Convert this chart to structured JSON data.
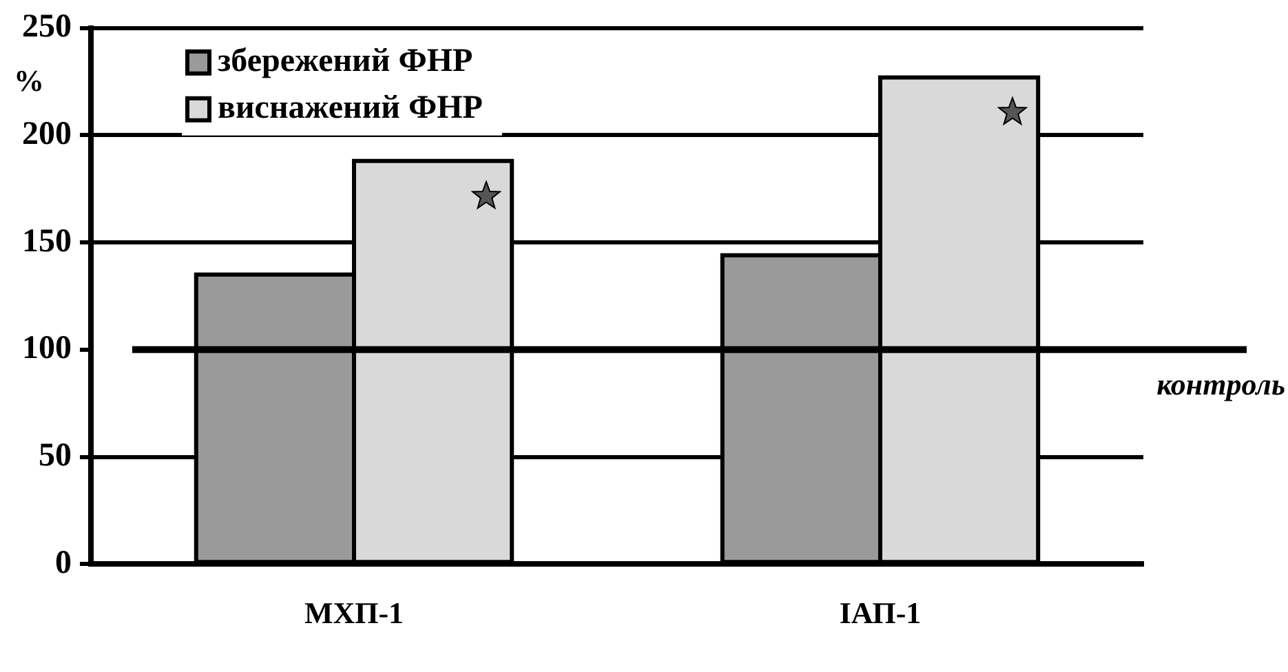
{
  "chart_data": {
    "type": "bar",
    "ylabel": "%",
    "categories": [
      "МХП-1",
      "ІАП-1"
    ],
    "series": [
      {
        "name": "збережений ФНР",
        "color": "#9a9a9a",
        "values": [
          135,
          144
        ]
      },
      {
        "name": "виснажений ФНР",
        "color": "#d9d9d9",
        "values": [
          188,
          227
        ]
      }
    ],
    "ylim": [
      0,
      250
    ],
    "yticks": [
      0,
      50,
      100,
      150,
      200,
      250
    ],
    "grid": "y",
    "legend": "top left",
    "ref_lines": [
      {
        "axis": "y",
        "value": 100,
        "label": "контроль"
      }
    ]
  }
}
